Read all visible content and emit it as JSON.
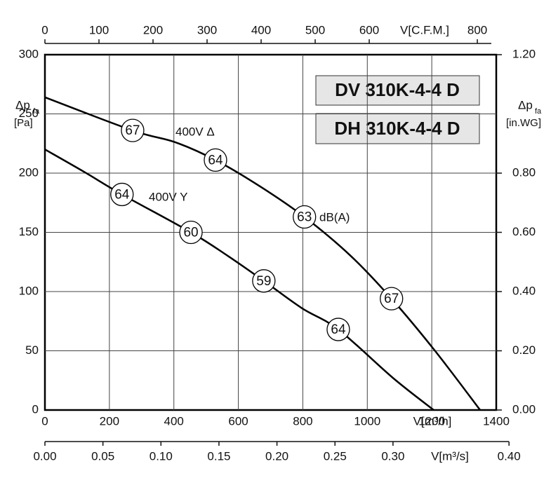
{
  "chart_data": {
    "type": "line",
    "boxes": [
      "DV 310K-4-4 D",
      "DH 310K-4-4 D"
    ],
    "y_label": {
      "symbol": "Δp",
      "subscript": "fa",
      "unit": "[Pa]"
    },
    "y2_label": {
      "symbol": "Δp",
      "subscript": "fa",
      "unit": "[in.WG]"
    },
    "x_label": "V[m³/h]",
    "x2_label": "V[C.F.M.]",
    "x3_label": "V[m³/s]",
    "noise_unit": "dB(A)",
    "xlim": [
      0,
      1400
    ],
    "xticks": [
      0,
      200,
      400,
      600,
      800,
      1000,
      1200,
      1400
    ],
    "x2lim": [
      0,
      835
    ],
    "x2ticks": [
      0,
      100,
      200,
      300,
      400,
      500,
      600,
      800
    ],
    "x3lim": [
      0,
      0.389
    ],
    "x3ticks": [
      {
        "value": 0,
        "label": "0.00"
      },
      0.05,
      {
        "value": 0.1,
        "label": "0.10"
      },
      0.15,
      {
        "value": 0.2,
        "label": "0.20"
      },
      0.25,
      {
        "value": 0.3,
        "label": "0.30"
      },
      {
        "value": 0.4,
        "label": "0.40"
      }
    ],
    "ylim": [
      0,
      300
    ],
    "yticks": [
      0,
      50,
      100,
      150,
      200,
      250,
      300
    ],
    "y2lim": [
      0,
      1.2
    ],
    "y2ticks": [
      {
        "value": 0,
        "label": "0.00"
      },
      {
        "value": 0.2,
        "label": "0.20"
      },
      {
        "value": 0.4,
        "label": "0.40"
      },
      {
        "value": 0.6,
        "label": "0.60"
      },
      {
        "value": 0.8,
        "label": "0.80"
      },
      {
        "value": 1.2,
        "label": "1.20"
      }
    ],
    "grid": true,
    "series": [
      {
        "name": "400V Δ",
        "color": "#000000",
        "x": [
          0,
          272,
          405,
          529,
          666,
          805,
          949,
          1075,
          1210,
          1350
        ],
        "values": [
          264,
          236,
          226,
          211,
          189,
          163,
          130,
          94,
          50,
          0
        ],
        "noise": [
          {
            "x": 272,
            "y": 236,
            "db": 67
          },
          {
            "x": 529,
            "y": 211,
            "db": 64
          },
          {
            "x": 805,
            "y": 163,
            "db": 63
          },
          {
            "x": 1075,
            "y": 94,
            "db": 67
          }
        ]
      },
      {
        "name": "400V Y",
        "color": "#000000",
        "x": [
          0,
          122,
          239,
          453,
          568,
          679,
          797,
          910,
          1080,
          1206
        ],
        "values": [
          220,
          201,
          182,
          150,
          130,
          109,
          86,
          68,
          27,
          0
        ],
        "noise": [
          {
            "x": 239,
            "y": 182,
            "db": 64
          },
          {
            "x": 453,
            "y": 150,
            "db": 60
          },
          {
            "x": 679,
            "y": 109,
            "db": 59
          },
          {
            "x": 910,
            "y": 68,
            "db": 64
          }
        ]
      }
    ]
  }
}
